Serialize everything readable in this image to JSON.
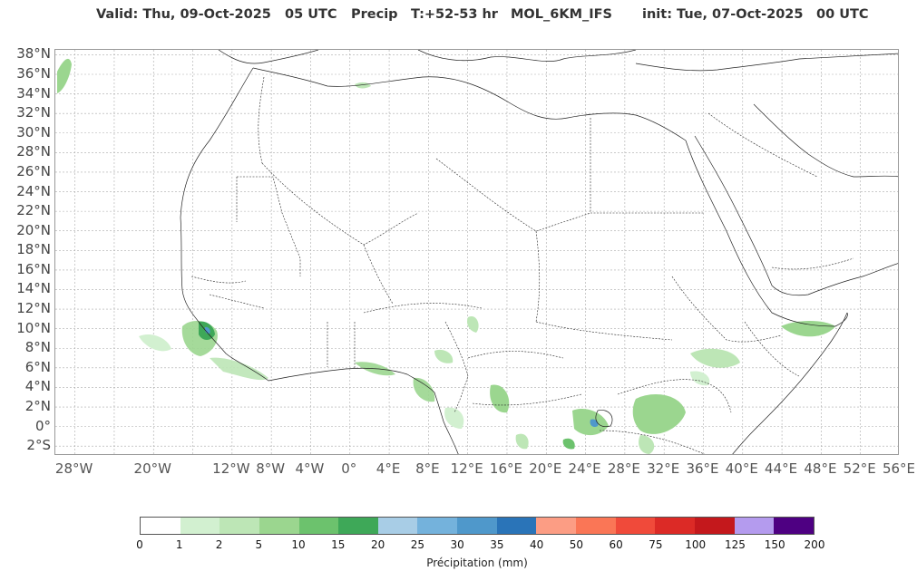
{
  "title": {
    "valid": "Valid: Thu, 09-Oct-2025",
    "valid_utc": "05 UTC",
    "variable": "Precip",
    "lead": "T:+52-53 hr",
    "model": "MOL_6KM_IFS",
    "init": "init: Tue, 07-Oct-2025",
    "init_utc": "00 UTC"
  },
  "map": {
    "lat_labels": [
      "38°N",
      "36°N",
      "34°N",
      "32°N",
      "30°N",
      "28°N",
      "26°N",
      "24°N",
      "22°N",
      "20°N",
      "18°N",
      "16°N",
      "14°N",
      "12°N",
      "10°N",
      "8°N",
      "6°N",
      "4°N",
      "2°N",
      "0°",
      "2°S"
    ],
    "lon_labels": [
      "28°W",
      "20°W",
      "12°W",
      "8°W",
      "4°W",
      "0°",
      "4°E",
      "8°E",
      "12°E",
      "16°E",
      "20°E",
      "24°E",
      "28°E",
      "32°E",
      "36°E",
      "40°E",
      "44°E",
      "48°E",
      "52°E",
      "56°E"
    ],
    "lat_values": [
      38,
      36,
      34,
      32,
      30,
      28,
      26,
      24,
      22,
      20,
      18,
      16,
      14,
      12,
      10,
      8,
      6,
      4,
      2,
      0,
      -2
    ],
    "lon_values": [
      -28,
      -20,
      -12,
      -8,
      -4,
      0,
      4,
      8,
      12,
      16,
      20,
      24,
      28,
      32,
      36,
      40,
      44,
      48,
      52,
      56
    ],
    "extent": {
      "west": -30,
      "east": 56,
      "south": -3,
      "north": 38.5
    },
    "grid": true,
    "colors": {
      "land_border": "#222222",
      "grid": "#aaaaaa",
      "background": "#ffffff"
    }
  },
  "colorbar": {
    "tick_labels": [
      "0",
      "1",
      "2",
      "5",
      "10",
      "15",
      "20",
      "25",
      "30",
      "35",
      "40",
      "50",
      "60",
      "75",
      "100",
      "125",
      "150",
      "200"
    ],
    "colors": [
      "#ffffff",
      "#d2f0d0",
      "#bde6b6",
      "#9bd68f",
      "#6cc26d",
      "#3ea858",
      "#a8cde6",
      "#74b2dc",
      "#4f98cb",
      "#2a74b8",
      "#fc9d84",
      "#fa7656",
      "#f04a3a",
      "#dc2a26",
      "#c4181c",
      "#b49bee",
      "#4e0082"
    ],
    "label": "Précipitation (mm)"
  },
  "precip_areas": [
    {
      "region": "Guinea / Sierra Leone coast",
      "color": "#6cc26d"
    },
    {
      "region": "Gulf of Guinea",
      "color": "#9bd68f"
    },
    {
      "region": "Central Africa",
      "color": "#9bd68f"
    },
    {
      "region": "Lake Victoria region",
      "color": "#4f98cb"
    },
    {
      "region": "Ethiopia / Somalia",
      "color": "#bde6b6"
    }
  ]
}
